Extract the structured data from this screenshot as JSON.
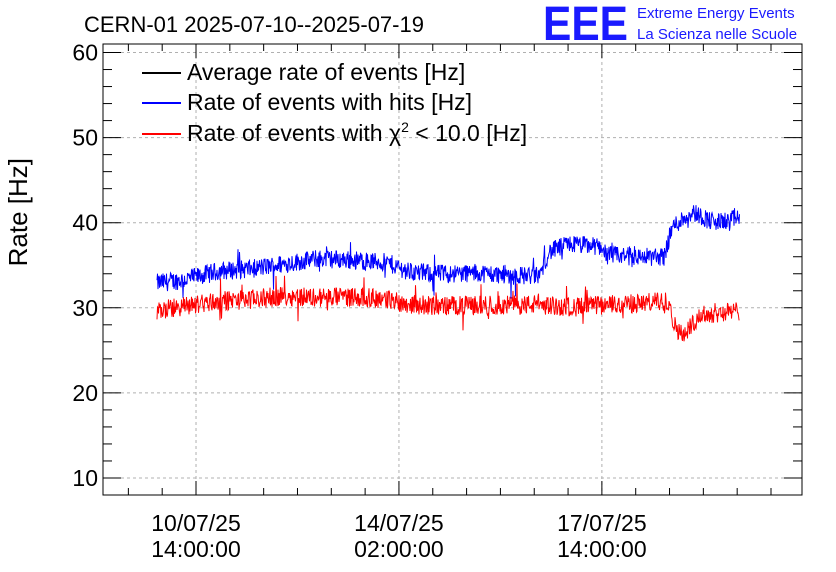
{
  "colors": {
    "average": "#000000",
    "hits": "#0000ff",
    "chi2": "#ff0000",
    "grid": "#b0b0b0",
    "logo": "#1a1aff"
  },
  "logo": {
    "mark": "EEE",
    "line1": "Extreme Energy Events",
    "line2": "La Scienza nelle Scuole"
  },
  "chart_data": {
    "type": "line",
    "title": "CERN-01 2025-07-10--2025-07-19",
    "xlabel": "",
    "ylabel": "Rate [Hz]",
    "ylim": [
      8,
      61
    ],
    "yticks": [
      10,
      20,
      30,
      40,
      50,
      60
    ],
    "xlim_hours": [
      -16.5,
      107.5
    ],
    "grid": true,
    "legend_position": "top-left",
    "x_ticks": [
      {
        "hours": 0,
        "line1": "10/07/25",
        "line2": "14:00:00"
      },
      {
        "hours": 36,
        "line1": "14/07/25",
        "line2": "02:00:00"
      },
      {
        "hours": 72,
        "line1": "17/07/25",
        "line2": "14:00:00"
      }
    ],
    "x_start_hours": -7,
    "x_end_hours": 96.5,
    "series": [
      {
        "name": "Average rate of events [Hz]",
        "legend_text": "Average rate of events [Hz]",
        "color_key": "average",
        "points": []
      },
      {
        "name": "Rate of events with hits [Hz]",
        "legend_text": "Rate of events with hits [Hz]",
        "color_key": "hits",
        "noise": 1.1,
        "points": [
          [
            -7,
            32.9
          ],
          [
            -2,
            33.3
          ],
          [
            4,
            34.3
          ],
          [
            10,
            34.6
          ],
          [
            16,
            35.2
          ],
          [
            22,
            35.8
          ],
          [
            28,
            35.6
          ],
          [
            34,
            35.3
          ],
          [
            38,
            34.2
          ],
          [
            44,
            34.0
          ],
          [
            50,
            34.1
          ],
          [
            56,
            33.8
          ],
          [
            61,
            33.8
          ],
          [
            62.5,
            36.5
          ],
          [
            66,
            37.5
          ],
          [
            72,
            37.2
          ],
          [
            72.8,
            36.2
          ],
          [
            78,
            36.0
          ],
          [
            83,
            36.0
          ],
          [
            84.5,
            39.5
          ],
          [
            88,
            41.3
          ],
          [
            92,
            40.0
          ],
          [
            96.5,
            40.5
          ]
        ]
      },
      {
        "name": "Rate of events with chi2 < 10.0 [Hz]",
        "legend_prefix": "Rate of events with ",
        "legend_symbol": "χ",
        "legend_sup": "2",
        "legend_suffix": " < 10.0 [Hz]",
        "color_key": "chi2",
        "noise": 1.15,
        "points": [
          [
            -7,
            29.6
          ],
          [
            -2,
            30.2
          ],
          [
            4,
            30.8
          ],
          [
            10,
            31.0
          ],
          [
            16,
            31.4
          ],
          [
            22,
            31.2
          ],
          [
            28,
            31.3
          ],
          [
            34,
            31.0
          ],
          [
            38,
            30.4
          ],
          [
            44,
            30.2
          ],
          [
            50,
            30.3
          ],
          [
            56,
            30.3
          ],
          [
            61,
            30.4
          ],
          [
            63,
            30.2
          ],
          [
            68,
            30.1
          ],
          [
            72,
            30.3
          ],
          [
            78,
            30.5
          ],
          [
            84,
            30.8
          ],
          [
            84.8,
            28.0
          ],
          [
            86.5,
            26.6
          ],
          [
            89,
            29.0
          ],
          [
            92,
            29.4
          ],
          [
            96.5,
            29.6
          ]
        ]
      }
    ]
  }
}
